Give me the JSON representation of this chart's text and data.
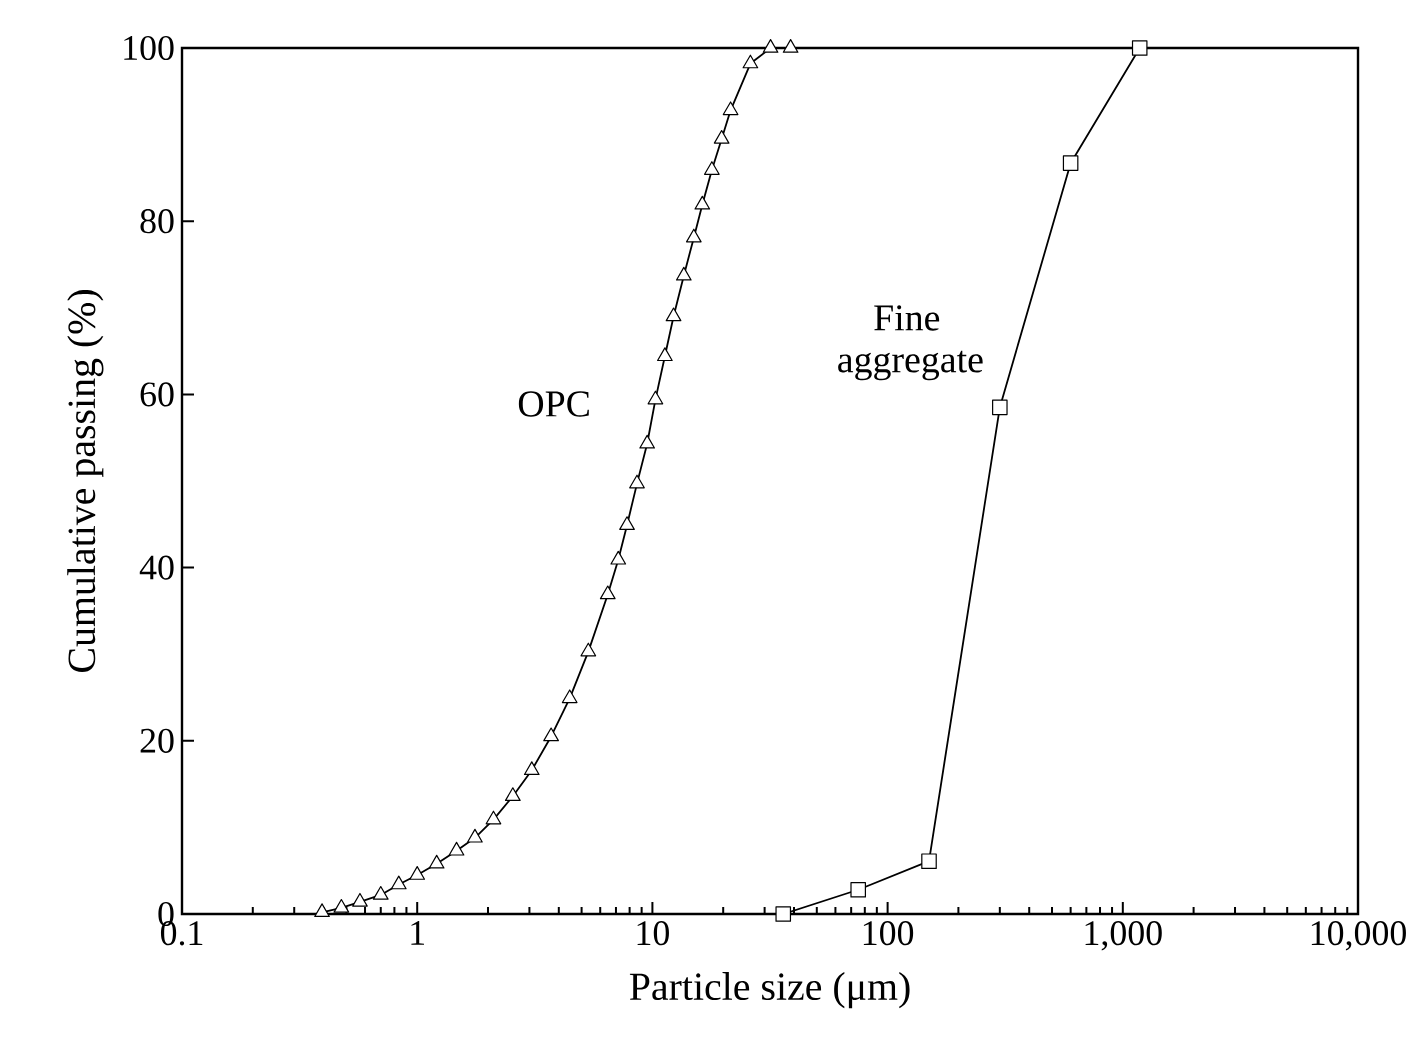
{
  "chart_data": {
    "type": "line",
    "xlabel": "Particle size (μm)",
    "ylabel": "Cumulative passing (%)",
    "log": "x",
    "grid": false,
    "xlim": [
      0.1,
      10000
    ],
    "xticks": [
      0.1,
      1,
      10,
      100,
      {
        "value": 1000,
        "label": "1,000"
      },
      {
        "value": 10000,
        "label": "10,000"
      }
    ],
    "ylim": [
      0,
      100
    ],
    "yticks": [
      0,
      20,
      40,
      60,
      80,
      100
    ],
    "series": [
      {
        "name": "OPC",
        "color": "#000000",
        "marker": "triangle",
        "x": [
          0.394,
          0.476,
          0.571,
          0.7,
          0.835,
          1.0,
          1.21,
          1.47,
          1.76,
          2.11,
          2.55,
          3.07,
          3.71,
          4.45,
          5.34,
          6.46,
          7.16,
          7.8,
          8.6,
          9.5,
          10.3,
          11.3,
          12.3,
          13.6,
          15.0,
          16.3,
          17.9,
          19.7,
          21.5,
          26.1,
          31.8,
          38.7
        ],
        "values": [
          0.2,
          0.7,
          1.4,
          2.2,
          3.4,
          4.5,
          5.8,
          7.3,
          8.8,
          10.9,
          13.6,
          16.6,
          20.5,
          24.9,
          30.3,
          36.9,
          40.9,
          44.9,
          49.7,
          54.3,
          59.4,
          64.4,
          69.0,
          73.7,
          78.1,
          81.9,
          85.9,
          89.5,
          92.8,
          98.2,
          100,
          100
        ]
      },
      {
        "name": "Fine aggregate",
        "color": "#000000",
        "marker": "square",
        "x": [
          36,
          75,
          150,
          300,
          600,
          1180
        ],
        "values": [
          0,
          2.8,
          6.1,
          58.5,
          86.7,
          100
        ]
      }
    ]
  }
}
